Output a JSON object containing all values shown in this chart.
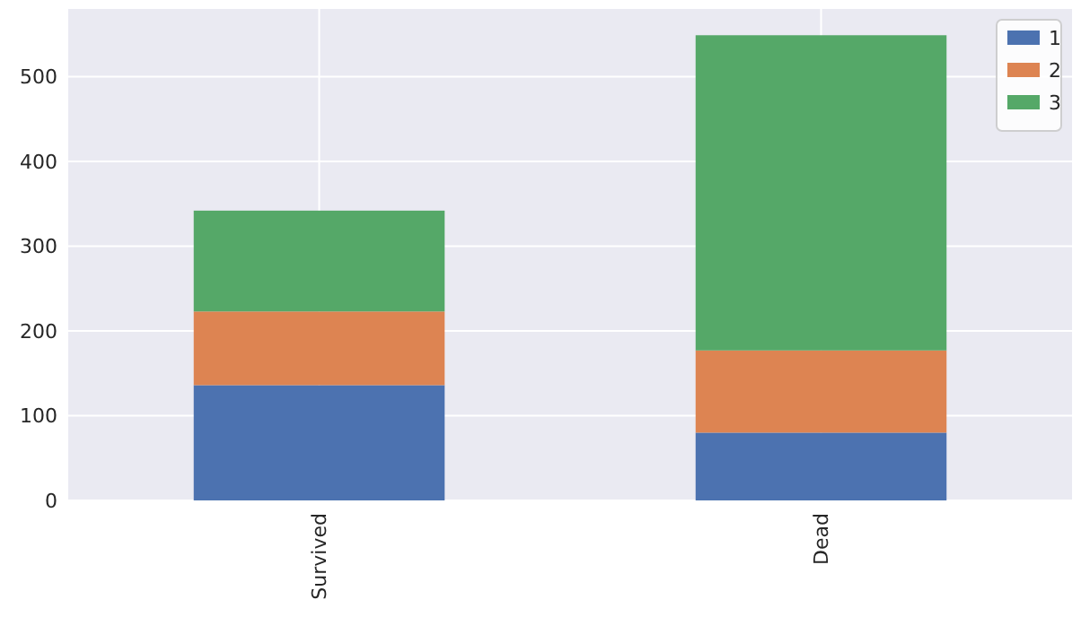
{
  "chart_data": {
    "type": "bar",
    "stacked": true,
    "categories": [
      "Survived",
      "Dead"
    ],
    "series": [
      {
        "name": "1",
        "color": "#4c72b0",
        "values": [
          136,
          80
        ]
      },
      {
        "name": "2",
        "color": "#dd8452",
        "values": [
          87,
          97
        ]
      },
      {
        "name": "3",
        "color": "#55a868",
        "values": [
          119,
          372
        ]
      }
    ],
    "ylim": [
      0,
      580
    ],
    "yticks": [
      0,
      100,
      200,
      300,
      400,
      500
    ],
    "grid": true,
    "legend": "top right"
  }
}
